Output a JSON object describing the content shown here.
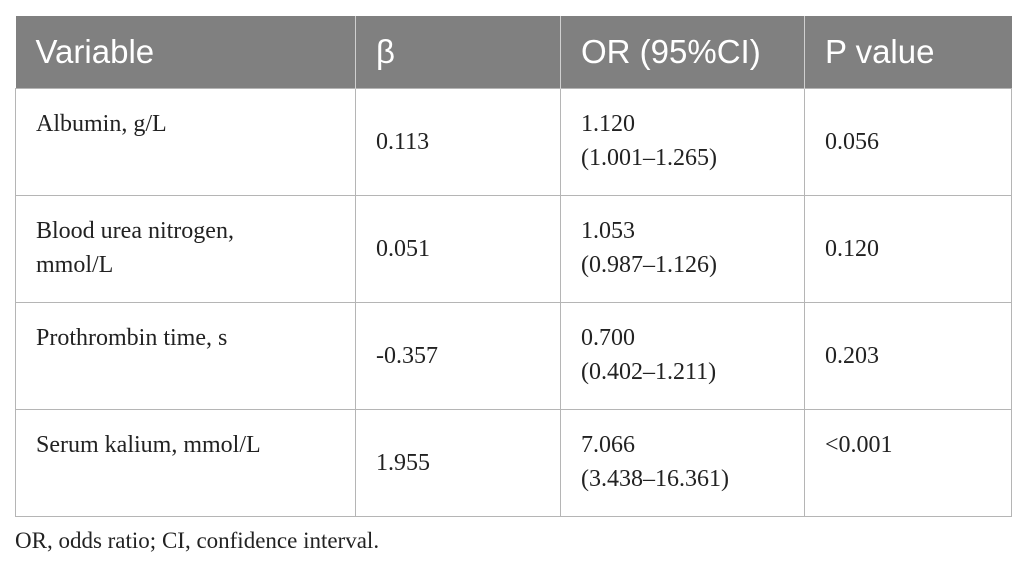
{
  "table": {
    "headers": [
      "Variable",
      "β",
      "OR (95%CI)",
      "P value"
    ],
    "rows": [
      {
        "variable_lines": [
          "Albumin, g/L"
        ],
        "beta": "0.113",
        "or_lines": [
          "1.120",
          "(1.001–1.265)"
        ],
        "p": "0.056"
      },
      {
        "variable_lines": [
          "Blood urea nitrogen,",
          "mmol/L"
        ],
        "beta": "0.051",
        "or_lines": [
          "1.053",
          "(0.987–1.126)"
        ],
        "p": "0.120"
      },
      {
        "variable_lines": [
          "Prothrombin time, s"
        ],
        "beta": "-0.357",
        "or_lines": [
          "0.700",
          "(0.402–1.211)"
        ],
        "p": "0.203"
      },
      {
        "variable_lines": [
          "Serum kalium, mmol/L"
        ],
        "beta": "1.955",
        "or_lines": [
          "7.066",
          "(3.438–16.361)"
        ],
        "p": "<0.001"
      }
    ]
  },
  "footnote": "OR, odds ratio; CI, confidence interval."
}
